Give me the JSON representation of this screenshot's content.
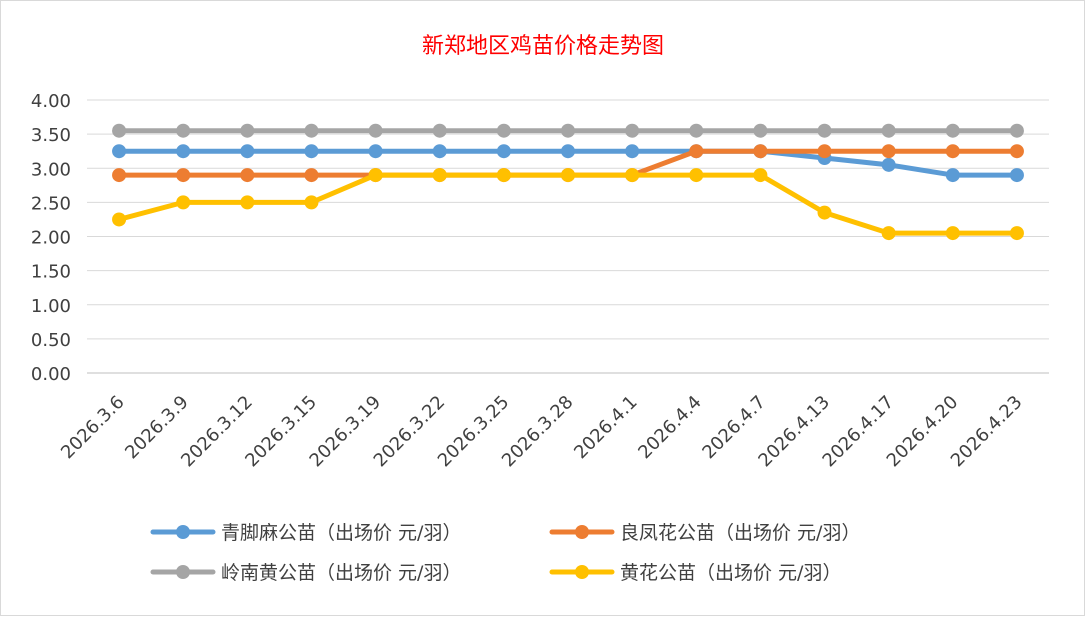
{
  "chart_data": {
    "type": "line",
    "title": "新郑地区鸡苗价格走势图",
    "xlabel": "",
    "ylabel": "",
    "categories": [
      "2026.3.6",
      "2026.3.9",
      "2026.3.12",
      "2026.3.15",
      "2026.3.19",
      "2026.3.22",
      "2026.3.25",
      "2026.3.28",
      "2026.4.1",
      "2026.4.4",
      "2026.4.7",
      "2026.4.13",
      "2026.4.17",
      "2026.4.20",
      "2026.4.23"
    ],
    "ylim": [
      0,
      4
    ],
    "yticks": [
      "0.00",
      "0.50",
      "1.00",
      "1.50",
      "2.00",
      "2.50",
      "3.00",
      "3.50",
      "4.00"
    ],
    "grid": true,
    "legend_position": "bottom",
    "series": [
      {
        "name": "青脚麻公苗（出场价 元/羽）",
        "color": "#5b9bd5",
        "values": [
          3.25,
          3.25,
          3.25,
          3.25,
          3.25,
          3.25,
          3.25,
          3.25,
          3.25,
          3.25,
          3.25,
          3.15,
          3.05,
          2.9,
          2.9
        ]
      },
      {
        "name": "良凤花公苗（出场价 元/羽）",
        "color": "#ed7d31",
        "values": [
          2.9,
          2.9,
          2.9,
          2.9,
          2.9,
          2.9,
          2.9,
          2.9,
          2.9,
          3.25,
          3.25,
          3.25,
          3.25,
          3.25,
          3.25
        ]
      },
      {
        "name": "岭南黄公苗（出场价 元/羽）",
        "color": "#a5a5a5",
        "values": [
          3.55,
          3.55,
          3.55,
          3.55,
          3.55,
          3.55,
          3.55,
          3.55,
          3.55,
          3.55,
          3.55,
          3.55,
          3.55,
          3.55,
          3.55
        ]
      },
      {
        "name": "黄花公苗（出场价 元/羽）",
        "color": "#ffc000",
        "values": [
          2.25,
          2.5,
          2.5,
          2.5,
          2.9,
          2.9,
          2.9,
          2.9,
          2.9,
          2.9,
          2.9,
          2.35,
          2.05,
          2.05,
          2.05
        ]
      }
    ]
  }
}
